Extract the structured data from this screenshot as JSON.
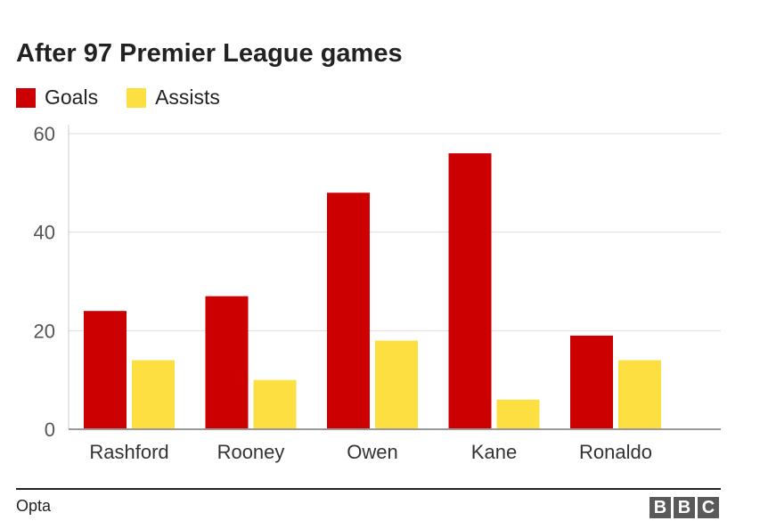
{
  "title": "After 97 Premier League games",
  "source": "Opta",
  "logo": [
    "B",
    "B",
    "C"
  ],
  "colors": {
    "goals": "#cc0000",
    "assists": "#fddf42",
    "grid": "#dddddd",
    "axis": "#999999"
  },
  "chart_data": {
    "type": "bar",
    "title": "After 97 Premier League games",
    "xlabel": "",
    "ylabel": "",
    "categories": [
      "Rashford",
      "Rooney",
      "Owen",
      "Kane",
      "Ronaldo"
    ],
    "series": [
      {
        "name": "Goals",
        "color": "#cc0000",
        "values": [
          24,
          27,
          48,
          56,
          19
        ]
      },
      {
        "name": "Assists",
        "color": "#fddf42",
        "values": [
          14,
          10,
          18,
          6,
          14
        ]
      }
    ],
    "ylim": [
      0,
      60
    ],
    "yticks": [
      0,
      20,
      40,
      60
    ],
    "grid": true,
    "legend": "top-left"
  }
}
